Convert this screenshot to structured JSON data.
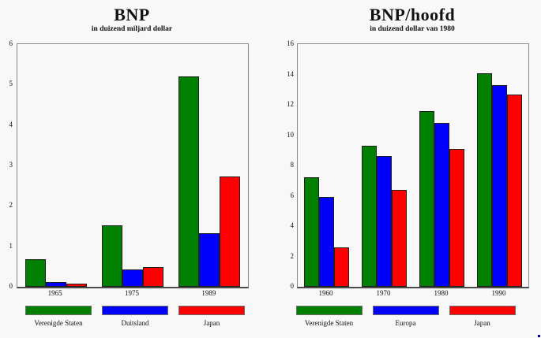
{
  "figure": {
    "background": "#f8f8f8",
    "frame_color": "#8a8a8a",
    "axis_color": "#4a4a4a",
    "bar_border_color": "#1f1f1f",
    "corner_dot_color": "#0000bb"
  },
  "chart_data": [
    {
      "type": "bar",
      "title": "BNP",
      "subtitle": "in duizend miljard dollar",
      "categories": [
        "1965",
        "1975",
        "1989"
      ],
      "series": [
        {
          "name": "Verenigde Staten",
          "color": "#008000",
          "values": [
            0.68,
            1.52,
            5.2
          ]
        },
        {
          "name": "Duitsland",
          "color": "#0000ff",
          "values": [
            0.11,
            0.42,
            1.32
          ]
        },
        {
          "name": "Japan",
          "color": "#ff0000",
          "values": [
            0.07,
            0.49,
            2.72
          ]
        }
      ],
      "xlabel": "",
      "ylabel": "",
      "ylim": [
        0,
        6
      ],
      "ytick_step": 1,
      "grid": false,
      "legend_position": "bottom"
    },
    {
      "type": "bar",
      "title": "BNP/hoofd",
      "subtitle": "in duizend dollar van 1980",
      "categories": [
        "1960",
        "1970",
        "1980",
        "1990"
      ],
      "series": [
        {
          "name": "Verenigde Staten",
          "color": "#008000",
          "values": [
            7.2,
            9.3,
            11.6,
            14.1
          ]
        },
        {
          "name": "Europa",
          "color": "#0000ff",
          "values": [
            5.9,
            8.6,
            10.8,
            13.3
          ]
        },
        {
          "name": "Japan",
          "color": "#ff0000",
          "values": [
            2.6,
            6.4,
            9.1,
            12.7
          ]
        }
      ],
      "xlabel": "",
      "ylabel": "",
      "ylim": [
        0,
        16
      ],
      "ytick_step": 2,
      "grid": false,
      "legend_position": "bottom"
    }
  ]
}
